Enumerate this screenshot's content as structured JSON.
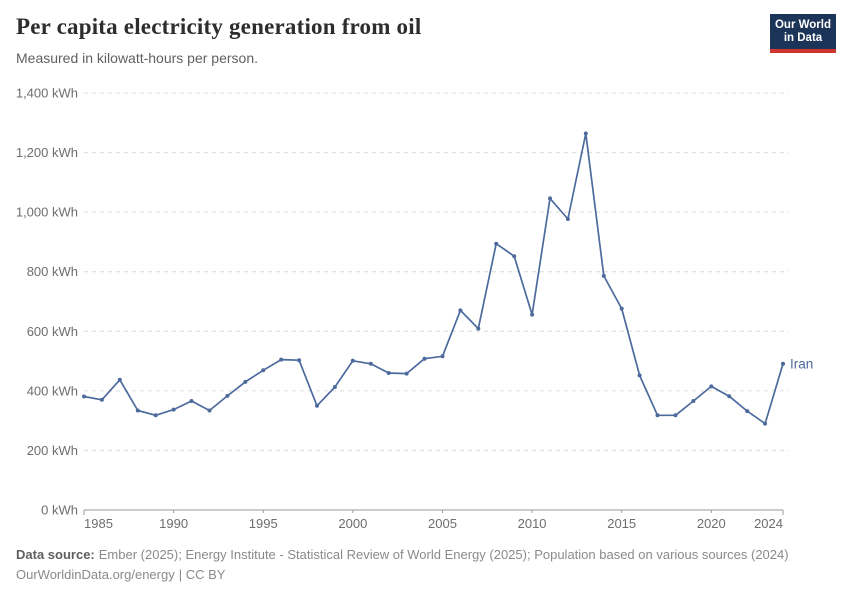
{
  "header": {
    "title": "Per capita electricity generation from oil",
    "subtitle": "Measured in kilowatt-hours per person.",
    "logo": {
      "line1": "Our World",
      "line2": "in Data",
      "bg_color": "#1b3458",
      "accent_color": "#cf352e",
      "text_color": "#ffffff"
    }
  },
  "chart_data": {
    "type": "line",
    "title": "Per capita electricity generation from oil",
    "ylabel": "kilowatt-hours per person",
    "xlim": [
      1985,
      2024
    ],
    "ylim": [
      0,
      1400
    ],
    "grid": "horizontal-dashed",
    "legend": "line-end-label",
    "x": [
      1985,
      1986,
      1987,
      1988,
      1989,
      1990,
      1991,
      1992,
      1993,
      1994,
      1995,
      1996,
      1997,
      1998,
      1999,
      2000,
      2001,
      2002,
      2003,
      2004,
      2005,
      2006,
      2007,
      2008,
      2009,
      2010,
      2011,
      2012,
      2013,
      2014,
      2015,
      2016,
      2017,
      2018,
      2019,
      2020,
      2021,
      2022,
      2023,
      2024
    ],
    "series": [
      {
        "name": "Iran",
        "color": "#4C6A9C",
        "values": [
          381,
          370,
          437,
          334,
          318,
          337,
          366,
          334,
          383,
          430,
          469,
          505,
          503,
          350,
          413,
          501,
          491,
          460,
          458,
          508,
          516,
          670,
          609,
          894,
          852,
          656,
          1046,
          977,
          1264,
          786,
          676,
          452,
          318,
          318,
          366,
          415,
          382,
          332,
          290,
          491
        ]
      }
    ],
    "yticks": [
      {
        "v": 0,
        "label": "0 kWh"
      },
      {
        "v": 200,
        "label": "200 kWh"
      },
      {
        "v": 400,
        "label": "400 kWh"
      },
      {
        "v": 600,
        "label": "600 kWh"
      },
      {
        "v": 800,
        "label": "800 kWh"
      },
      {
        "v": 1000,
        "label": "1,000 kWh"
      },
      {
        "v": 1200,
        "label": "1,200 kWh"
      },
      {
        "v": 1400,
        "label": "1,400 kWh"
      }
    ],
    "xticks": [
      {
        "v": 1985,
        "label": "1985"
      },
      {
        "v": 1990,
        "label": "1990"
      },
      {
        "v": 1995,
        "label": "1995"
      },
      {
        "v": 2000,
        "label": "2000"
      },
      {
        "v": 2005,
        "label": "2005"
      },
      {
        "v": 2010,
        "label": "2010"
      },
      {
        "v": 2015,
        "label": "2015"
      },
      {
        "v": 2020,
        "label": "2020"
      },
      {
        "v": 2024,
        "label": "2024"
      }
    ]
  },
  "footer": {
    "datasource_label": "Data source:",
    "datasource_text": "Ember (2025); Energy Institute - Statistical Review of World Energy (2025); Population based on various sources (2024)",
    "link_text": "OurWorldinData.org/energy",
    "license_text": "| CC BY"
  }
}
